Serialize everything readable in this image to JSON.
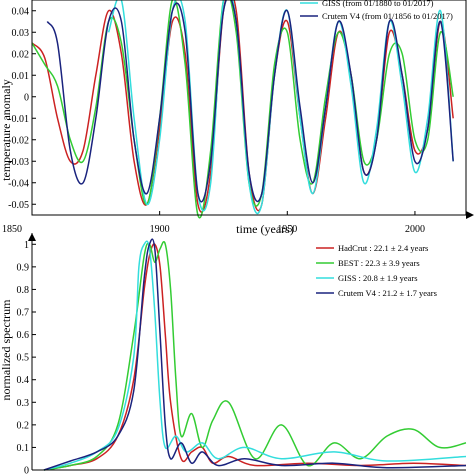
{
  "chart_data": [
    {
      "type": "line",
      "title": "",
      "xlabel": "time (years)",
      "ylabel": "temperature anomaly",
      "xlim": [
        1850,
        2020
      ],
      "ylim": [
        -0.055,
        0.045
      ],
      "x_ticks": [
        "1850",
        "1900",
        "1950",
        "2000"
      ],
      "y_ticks": [
        "0.04",
        "0.03",
        "0.02",
        "0.01",
        "0",
        "-0.01",
        "-0.02",
        "-0.03",
        "-0.04",
        "-0.05"
      ],
      "legend": {
        "placement": "top-right",
        "entries": [
          "GISS (from 01/1880 to 01/2017)",
          "Crutem V4 (from 01/1856 to 01/2017)"
        ]
      },
      "series": [
        {
          "name": "HadCrut",
          "color": "#cc2222",
          "x": [
            1850,
            1855,
            1860,
            1865,
            1870,
            1875,
            1880,
            1885,
            1890,
            1895,
            1900,
            1905,
            1910,
            1915,
            1920,
            1925,
            1930,
            1935,
            1940,
            1945,
            1950,
            1955,
            1960,
            1965,
            1970,
            1975,
            1980,
            1985,
            1990,
            1995,
            2000,
            2005,
            2010,
            2015
          ],
          "y": [
            0.025,
            0.018,
            -0.01,
            -0.03,
            -0.025,
            0.01,
            0.04,
            0.02,
            -0.03,
            -0.05,
            -0.015,
            0.035,
            0.02,
            -0.05,
            -0.035,
            0.04,
            0.04,
            -0.035,
            -0.05,
            0.01,
            0.035,
            -0.01,
            -0.045,
            -0.01,
            0.03,
            0.01,
            -0.035,
            -0.02,
            0.03,
            0.01,
            -0.025,
            -0.015,
            0.035,
            -0.01
          ]
        },
        {
          "name": "BEST",
          "color": "#33cc33",
          "x": [
            1850,
            1855,
            1860,
            1865,
            1870,
            1875,
            1880,
            1885,
            1890,
            1895,
            1900,
            1905,
            1910,
            1915,
            1920,
            1925,
            1930,
            1935,
            1940,
            1945,
            1950,
            1955,
            1960,
            1965,
            1970,
            1975,
            1980,
            1985,
            1990,
            1995,
            2000,
            2005,
            2010,
            2015
          ],
          "y": [
            0.025,
            0.015,
            0.005,
            -0.02,
            -0.03,
            -0.005,
            0.035,
            0.025,
            -0.02,
            -0.05,
            -0.01,
            0.045,
            0.015,
            -0.055,
            -0.025,
            0.045,
            0.03,
            -0.04,
            -0.045,
            0.015,
            0.03,
            -0.02,
            -0.04,
            0.0,
            0.03,
            0.01,
            -0.03,
            -0.02,
            0.02,
            0.02,
            -0.02,
            -0.02,
            0.03,
            0.0
          ]
        },
        {
          "name": "GISS",
          "color": "#33dddd",
          "x": [
            1880,
            1885,
            1890,
            1895,
            1900,
            1905,
            1910,
            1915,
            1920,
            1925,
            1930,
            1935,
            1940,
            1945,
            1950,
            1955,
            1960,
            1965,
            1970,
            1975,
            1980,
            1985,
            1990,
            1995,
            2000,
            2005,
            2010,
            2015
          ],
          "y": [
            0.03,
            0.045,
            -0.01,
            -0.05,
            -0.02,
            0.04,
            0.035,
            -0.045,
            -0.04,
            0.045,
            0.035,
            -0.04,
            -0.05,
            0.01,
            0.04,
            -0.01,
            -0.045,
            -0.005,
            0.035,
            0.005,
            -0.04,
            -0.015,
            0.035,
            0.005,
            -0.035,
            -0.01,
            0.04,
            -0.03
          ]
        },
        {
          "name": "Crutem V4",
          "color": "#1a237e",
          "x": [
            1856,
            1860,
            1865,
            1870,
            1875,
            1880,
            1885,
            1890,
            1895,
            1900,
            1905,
            1910,
            1915,
            1920,
            1925,
            1930,
            1935,
            1940,
            1945,
            1950,
            1955,
            1960,
            1965,
            1970,
            1975,
            1980,
            1985,
            1990,
            1995,
            2000,
            2005,
            2010,
            2015
          ],
          "y": [
            0.035,
            0.025,
            -0.025,
            -0.04,
            -0.01,
            0.035,
            0.035,
            -0.02,
            -0.045,
            -0.01,
            0.04,
            0.03,
            -0.045,
            -0.03,
            0.04,
            0.035,
            -0.035,
            -0.045,
            0.01,
            0.04,
            -0.005,
            -0.04,
            -0.005,
            0.035,
            0.01,
            -0.035,
            -0.02,
            0.035,
            0.01,
            -0.03,
            -0.015,
            0.035,
            -0.03
          ]
        }
      ]
    },
    {
      "type": "line",
      "title": "",
      "xlabel": "",
      "ylabel": "normalized spectrum",
      "xlim": [
        0,
        80
      ],
      "ylim": [
        0,
        1.05
      ],
      "y_ticks": [
        "1",
        "0.9",
        "0.8",
        "0.7",
        "0.6",
        "0.5",
        "0.4",
        "0.3",
        "0.2",
        "0.1",
        "0"
      ],
      "legend": {
        "placement": "top-right",
        "entries": [
          "HadCrut : 22.1 ± 2.4 years",
          "BEST      : 22.3 ± 3.9 years",
          "GISS      : 20.8 ± 1.9 years",
          "Crutem V4 : 21.2 ± 1.7 years"
        ]
      },
      "series": [
        {
          "name": "HadCrut : 22.1 ± 2.4 years",
          "color": "#cc2222",
          "x": [
            0,
            5,
            10,
            14,
            17,
            19,
            20,
            21,
            22,
            23,
            24,
            26,
            28,
            30,
            32,
            35,
            40,
            50,
            60,
            70,
            80
          ],
          "y": [
            0.0,
            0.02,
            0.05,
            0.15,
            0.4,
            0.8,
            0.95,
            1.0,
            0.9,
            0.6,
            0.3,
            0.05,
            0.08,
            0.1,
            0.03,
            0.06,
            0.02,
            0.03,
            0.02,
            0.03,
            0.02
          ]
        },
        {
          "name": "BEST      : 22.3 ± 3.9 years",
          "color": "#33cc33",
          "x": [
            0,
            5,
            10,
            14,
            17,
            19,
            20,
            21,
            22,
            23,
            24,
            25,
            26,
            28,
            30,
            32,
            35,
            40,
            45,
            50,
            55,
            60,
            65,
            70,
            75,
            80
          ],
          "y": [
            0.0,
            0.02,
            0.06,
            0.2,
            0.6,
            0.95,
            1.0,
            0.92,
            0.98,
            1.0,
            0.8,
            0.4,
            0.15,
            0.25,
            0.1,
            0.22,
            0.3,
            0.05,
            0.2,
            0.02,
            0.12,
            0.05,
            0.15,
            0.18,
            0.1,
            0.12
          ]
        },
        {
          "name": "GISS      : 20.8 ± 1.9 years",
          "color": "#33dddd",
          "x": [
            0,
            5,
            10,
            14,
            17,
            18,
            19,
            20,
            21,
            22,
            23,
            25,
            27,
            30,
            33,
            38,
            45,
            55,
            65,
            80
          ],
          "y": [
            0.0,
            0.03,
            0.08,
            0.18,
            0.5,
            0.9,
            1.0,
            0.98,
            0.7,
            0.3,
            0.1,
            0.15,
            0.08,
            0.12,
            0.05,
            0.1,
            0.05,
            0.08,
            0.04,
            0.06
          ]
        },
        {
          "name": "Crutem V4 : 21.2 ± 1.7 years",
          "color": "#1a237e",
          "x": [
            0,
            5,
            10,
            14,
            17,
            19,
            20,
            21,
            22,
            23,
            24,
            26,
            28,
            30,
            33,
            38,
            45,
            55,
            65,
            80
          ],
          "y": [
            0.0,
            0.04,
            0.08,
            0.15,
            0.35,
            0.85,
            1.0,
            0.98,
            0.6,
            0.2,
            0.05,
            0.12,
            0.03,
            0.08,
            0.02,
            0.05,
            0.02,
            0.03,
            0.01,
            0.02
          ]
        }
      ]
    }
  ]
}
